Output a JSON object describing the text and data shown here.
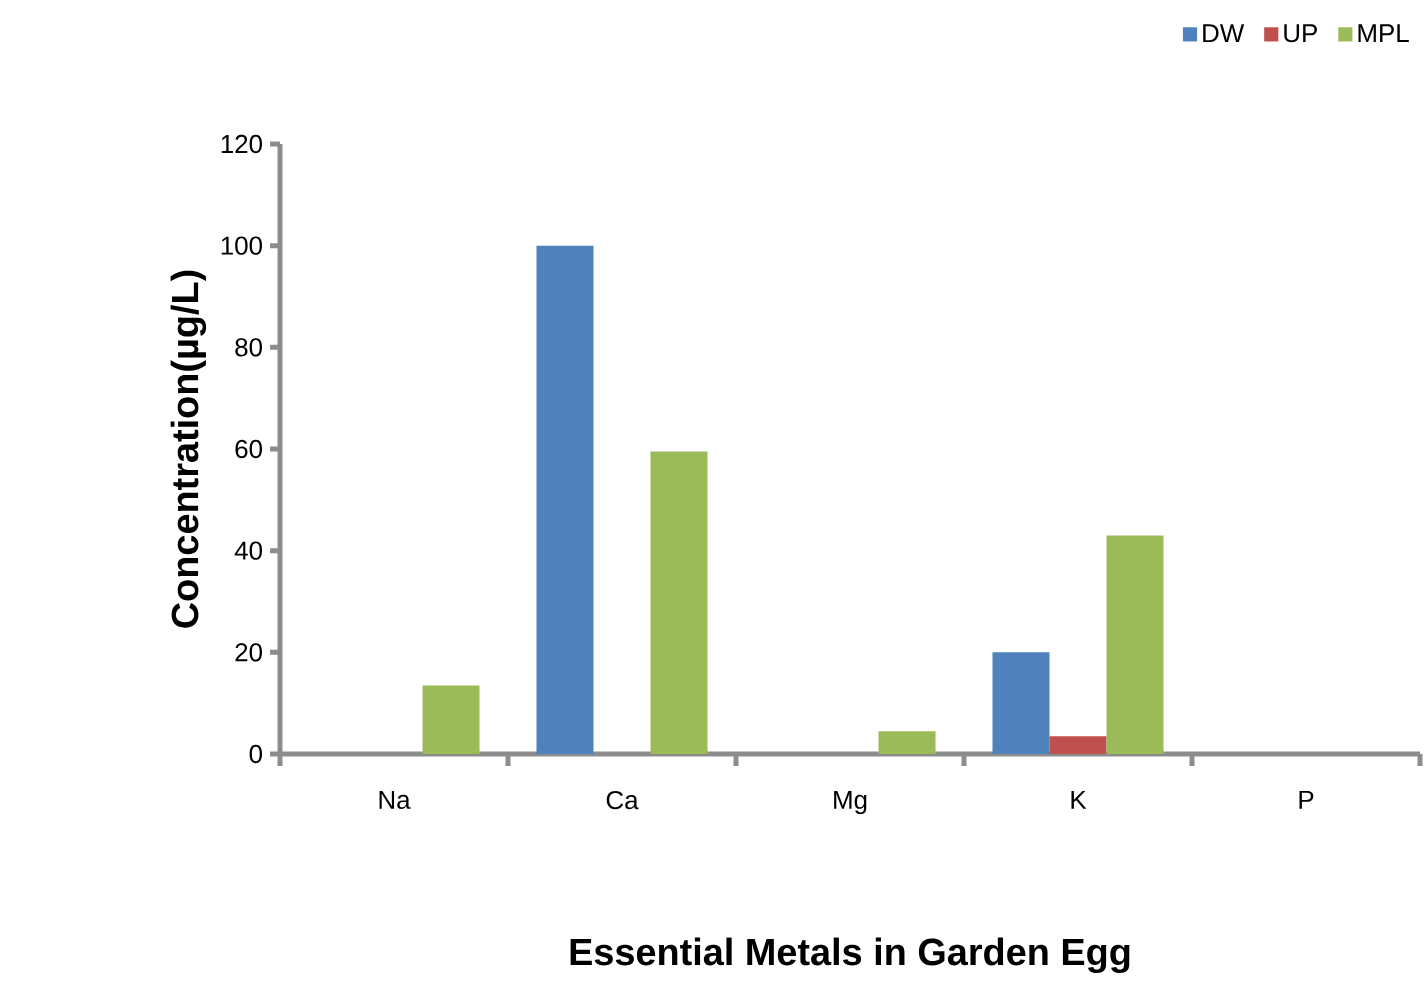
{
  "chart_data": {
    "type": "bar",
    "xlabel": "Essential Metals in Garden Egg",
    "ylabel": "Concentration(µg/L)",
    "categories": [
      "Na",
      "Ca",
      "Mg",
      "K",
      "P"
    ],
    "series": [
      {
        "name": "DW",
        "color": "#4f81bd",
        "values": [
          0,
          100,
          0,
          20,
          0
        ]
      },
      {
        "name": "UP",
        "color": "#c0504d",
        "values": [
          0,
          0,
          0,
          3.5,
          0
        ]
      },
      {
        "name": "MPL",
        "color": "#9bbb59",
        "values": [
          13.5,
          59.5,
          4.5,
          43,
          0
        ]
      }
    ],
    "ylim": [
      0,
      120
    ],
    "yticks": [
      0,
      20,
      40,
      60,
      80,
      100,
      120
    ],
    "legend": "top right"
  }
}
